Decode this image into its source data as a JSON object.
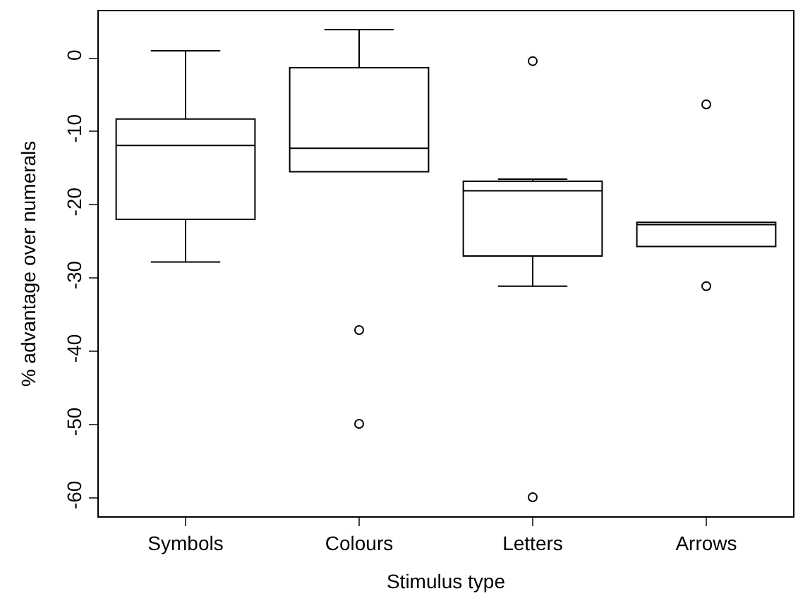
{
  "chart_data": {
    "type": "box",
    "xlabel": "Stimulus type",
    "ylabel": "% advantage over numerals",
    "categories": [
      "Symbols",
      "Colours",
      "Letters",
      "Arrows"
    ],
    "color": "#000000",
    "boxes": [
      {
        "low": -27.8,
        "q1": -22.0,
        "median": -11.9,
        "q3": -8.3,
        "high": 1.0
      },
      {
        "low": -15.5,
        "q1": -15.5,
        "median": -12.3,
        "q3": -1.3,
        "high": 3.9,
        "outliers": [
          -37.1,
          -49.9
        ]
      },
      {
        "low": -31.1,
        "q1": -27.0,
        "median": -18.1,
        "q3": -16.8,
        "high": -16.5,
        "outliers": [
          -0.4,
          -59.9
        ]
      },
      {
        "low": -25.7,
        "q1": -25.7,
        "median": -22.7,
        "q3": -22.4,
        "high": -22.4,
        "outliers": [
          -6.3,
          -31.1
        ]
      }
    ],
    "ylim": [
      -62.5,
      6.4
    ],
    "yticks": [
      -60,
      -50,
      -40,
      -30,
      -20,
      -10,
      0
    ],
    "grid": false
  }
}
